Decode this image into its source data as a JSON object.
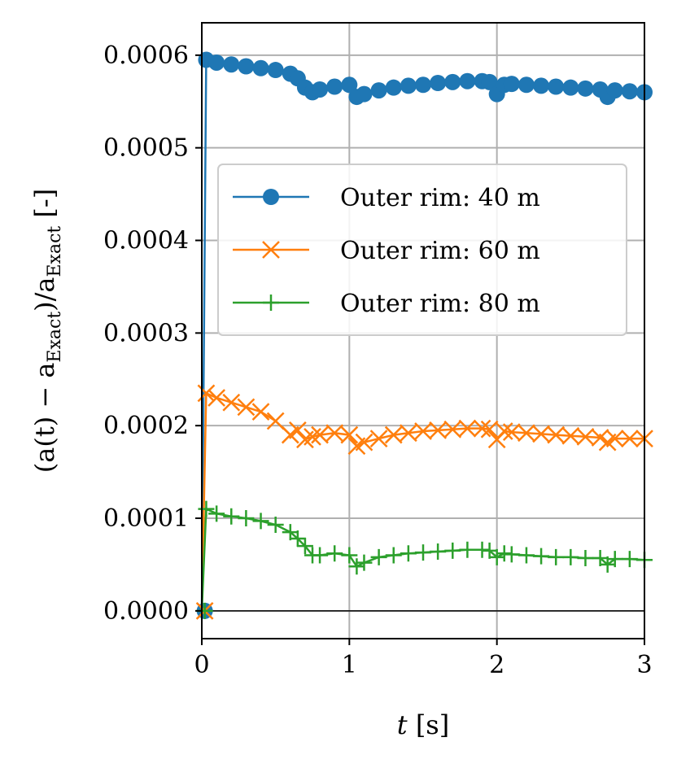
{
  "chart_data": {
    "type": "line",
    "title": "",
    "xlabel": "t [s]",
    "ylabel": "(a(t) - a_Exact)/a_Exact [-]",
    "ylabel_parts": {
      "main": "(a(t) − a",
      "sub1": "Exact",
      "mid": ")/a",
      "sub2": "Exact",
      "unit": " [-]"
    },
    "xlabel_parts": {
      "var": "t",
      "unit": " [s]"
    },
    "xlim": [
      0,
      3
    ],
    "ylim": [
      -3e-05,
      0.000635
    ],
    "xticks": [
      0,
      1,
      2,
      3
    ],
    "xtick_labels": [
      "0",
      "1",
      "2",
      "3"
    ],
    "yticks": [
      0.0,
      0.0001,
      0.0002,
      0.0003,
      0.0004,
      0.0005,
      0.0006
    ],
    "ytick_labels": [
      "0.0000",
      "0.0001",
      "0.0002",
      "0.0003",
      "0.0004",
      "0.0005",
      "0.0006"
    ],
    "grid": true,
    "hline": 0.0,
    "legend_position": "upper-right",
    "series": [
      {
        "name": "Outer rim: 40 m",
        "color": "#1f77b4",
        "marker": "circle",
        "start_value": 0.0,
        "x": [
          0.03,
          0.1,
          0.2,
          0.3,
          0.4,
          0.5,
          0.6,
          0.65,
          0.7,
          0.75,
          0.8,
          0.9,
          1.0,
          1.05,
          1.1,
          1.2,
          1.3,
          1.4,
          1.5,
          1.6,
          1.7,
          1.8,
          1.9,
          1.95,
          2.0,
          2.05,
          2.1,
          2.2,
          2.3,
          2.4,
          2.5,
          2.6,
          2.7,
          2.75,
          2.8,
          2.9,
          3.0
        ],
        "values": [
          0.000595,
          0.000592,
          0.00059,
          0.000588,
          0.000586,
          0.000584,
          0.00058,
          0.000575,
          0.000565,
          0.00056,
          0.000563,
          0.000566,
          0.000568,
          0.000555,
          0.000558,
          0.000562,
          0.000565,
          0.000567,
          0.000568,
          0.00057,
          0.000571,
          0.000572,
          0.000572,
          0.000571,
          0.000558,
          0.000568,
          0.000569,
          0.000568,
          0.000567,
          0.000566,
          0.000565,
          0.000564,
          0.000563,
          0.000555,
          0.000562,
          0.000561,
          0.00056
        ]
      },
      {
        "name": "Outer rim: 60 m",
        "color": "#ff7f0e",
        "marker": "x",
        "start_value": 0.0,
        "x": [
          0.03,
          0.1,
          0.2,
          0.3,
          0.4,
          0.5,
          0.6,
          0.65,
          0.7,
          0.75,
          0.8,
          0.9,
          1.0,
          1.05,
          1.1,
          1.2,
          1.3,
          1.4,
          1.5,
          1.6,
          1.7,
          1.8,
          1.9,
          1.95,
          2.0,
          2.05,
          2.1,
          2.2,
          2.3,
          2.4,
          2.5,
          2.6,
          2.7,
          2.75,
          2.8,
          2.9,
          3.0
        ],
        "values": [
          0.000235,
          0.00023,
          0.000225,
          0.00022,
          0.000215,
          0.000205,
          0.00019,
          0.000195,
          0.000185,
          0.000188,
          0.00019,
          0.000192,
          0.00019,
          0.000178,
          0.000182,
          0.000186,
          0.00019,
          0.000192,
          0.000194,
          0.000195,
          0.000196,
          0.000197,
          0.000197,
          0.000196,
          0.000185,
          0.000194,
          0.000193,
          0.000192,
          0.000191,
          0.00019,
          0.000189,
          0.000188,
          0.000187,
          0.000182,
          0.000186,
          0.000186,
          0.000186
        ]
      },
      {
        "name": "Outer rim: 80 m",
        "color": "#2ca02c",
        "marker": "plus",
        "start_value": 0.0,
        "x": [
          0.03,
          0.1,
          0.2,
          0.3,
          0.4,
          0.5,
          0.6,
          0.65,
          0.7,
          0.75,
          0.8,
          0.9,
          1.0,
          1.05,
          1.1,
          1.2,
          1.3,
          1.4,
          1.5,
          1.6,
          1.7,
          1.8,
          1.9,
          1.95,
          2.0,
          2.05,
          2.1,
          2.2,
          2.3,
          2.4,
          2.5,
          2.6,
          2.7,
          2.75,
          2.8,
          2.9,
          3.0
        ],
        "values": [
          0.00011,
          0.000105,
          0.000102,
          0.0001,
          9.7e-05,
          9.3e-05,
          8.5e-05,
          7.8e-05,
          7e-05,
          6e-05,
          6e-05,
          6.2e-05,
          6e-05,
          4.8e-05,
          5.2e-05,
          5.8e-05,
          6e-05,
          6.2e-05,
          6.3e-05,
          6.4e-05,
          6.5e-05,
          6.6e-05,
          6.6e-05,
          6.5e-05,
          5.8e-05,
          6.2e-05,
          6.1e-05,
          6e-05,
          5.9e-05,
          5.8e-05,
          5.8e-05,
          5.7e-05,
          5.7e-05,
          5e-05,
          5.6e-05,
          5.6e-05,
          5.5e-05
        ]
      }
    ]
  }
}
